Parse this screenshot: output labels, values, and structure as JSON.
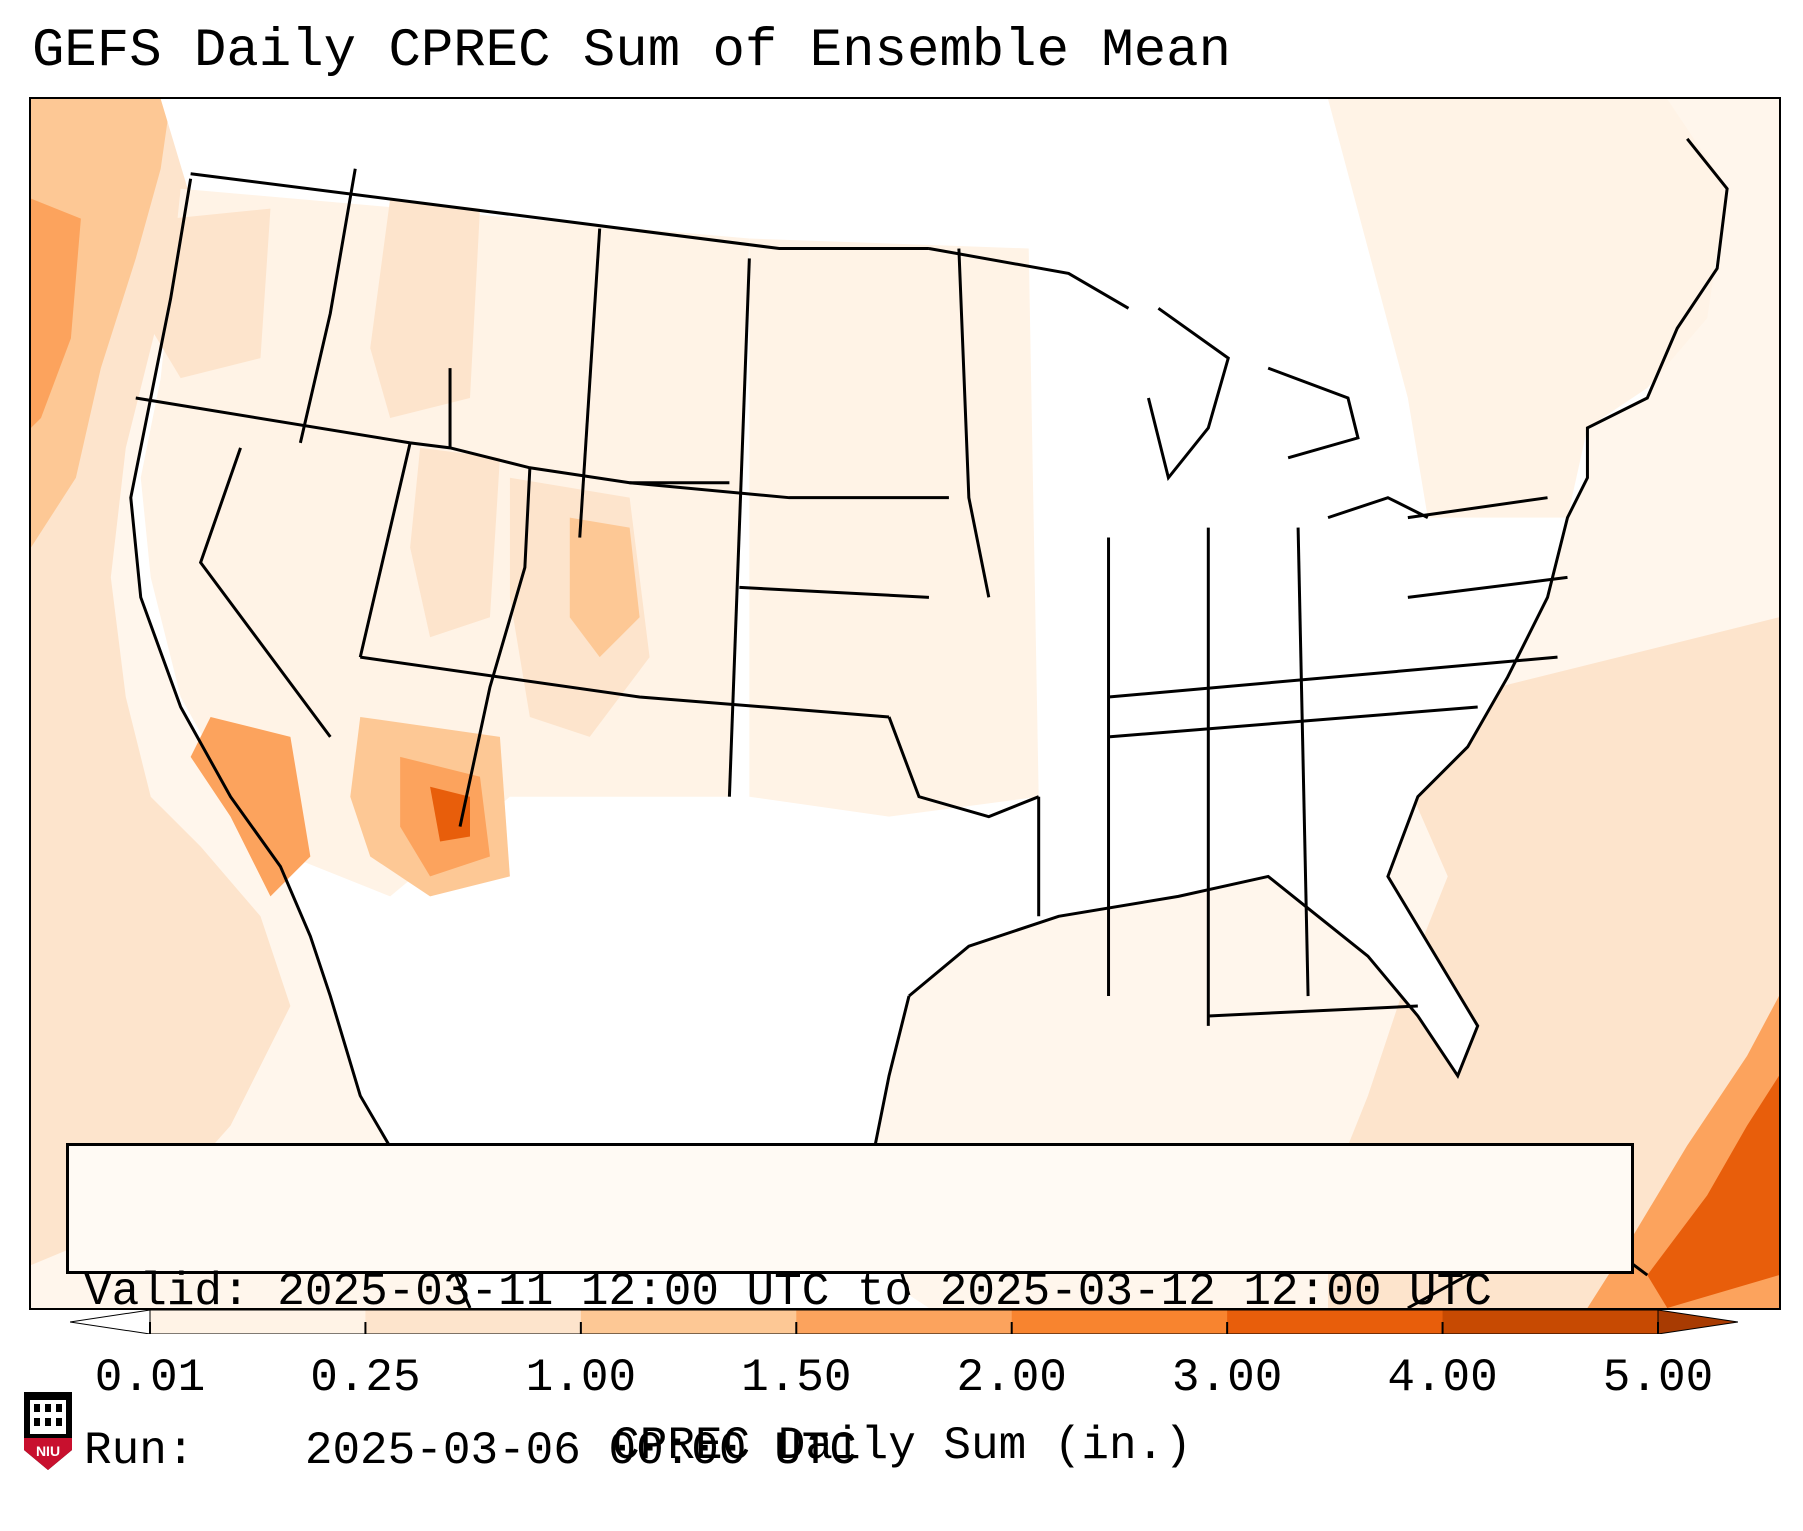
{
  "title": "GEFS Daily CPREC Sum of Ensemble Mean",
  "info_box": {
    "valid_label": "Valid:",
    "valid_text": "2025-03-11 12:00 UTC to 2025-03-12 12:00 UTC",
    "run_label": "Run:",
    "run_text": "2025-03-06 00:00 UTC"
  },
  "colorbar": {
    "label": "CPREC Daily Sum (in.)",
    "ticks": [
      "0.01",
      "0.25",
      "1.00",
      "1.50",
      "2.00",
      "3.00",
      "4.00",
      "5.00"
    ],
    "colors": [
      "#fff3e6",
      "#fde4cc",
      "#fdc895",
      "#fca35d",
      "#f8842f",
      "#e85e0b",
      "#c74a02"
    ],
    "under_color": "#ffffff",
    "over_color": "#a83b02"
  },
  "map": {
    "background_color": "#fff6ec",
    "land_color": "#ffffff"
  },
  "logo": {
    "text": "NIU",
    "colors": [
      "#c8102e",
      "#000000",
      "#ffffff"
    ]
  }
}
